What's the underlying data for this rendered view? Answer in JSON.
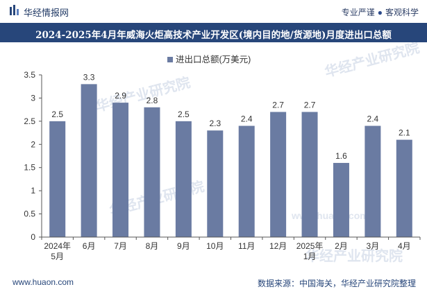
{
  "header": {
    "brand_name": "华经情报网",
    "tagline_left": "专业严谨",
    "tagline_right": "客观科学"
  },
  "title_bar": {
    "title": "2024-2025年4月年威海火炬高技术产业开发区(境内目的地/货源地)月度进出口总额"
  },
  "footer": {
    "url": "www.huaon.com",
    "source": "数据来源：中国海关，华经产业研究院整理"
  },
  "watermark": {
    "text": "华经产业研究院",
    "url": "www.huaon.com"
  },
  "colors": {
    "bar": "#6a7ba2",
    "title_bg": "#27467a",
    "axis": "#555555"
  },
  "chart_data": {
    "type": "bar",
    "title": "2024-2025年4月年威海火炬高技术产业开发区(境内目的地/货源地)月度进出口总额",
    "legend": "进出口总额(万美元)",
    "legend_position": "top-center",
    "categories": [
      [
        "2024年",
        "5月"
      ],
      [
        "6月"
      ],
      [
        "7月"
      ],
      [
        "8月"
      ],
      [
        "9月"
      ],
      [
        "10月"
      ],
      [
        "11月"
      ],
      [
        "12月"
      ],
      [
        "2025年",
        "1月"
      ],
      [
        "2月"
      ],
      [
        "3月"
      ],
      [
        "4月"
      ]
    ],
    "values": [
      2.5,
      3.3,
      2.9,
      2.8,
      2.5,
      2.3,
      2.4,
      2.7,
      2.7,
      1.6,
      2.4,
      2.1
    ],
    "labels": [
      "2.5",
      "3.3",
      "2.9",
      "2.8",
      "2.5",
      "2.3",
      "2.4",
      "2.7",
      "2.7",
      "1.6",
      "2.4",
      "2.1"
    ],
    "ylim": [
      0,
      3.5
    ],
    "yticks": [
      0,
      0.5,
      1,
      1.5,
      2,
      2.5,
      3,
      3.5
    ],
    "ytick_labels": [
      "0",
      "0.5",
      "1",
      "1.5",
      "2",
      "2.5",
      "3",
      "3.5"
    ],
    "xlabel": "",
    "ylabel": "",
    "grid": false
  }
}
